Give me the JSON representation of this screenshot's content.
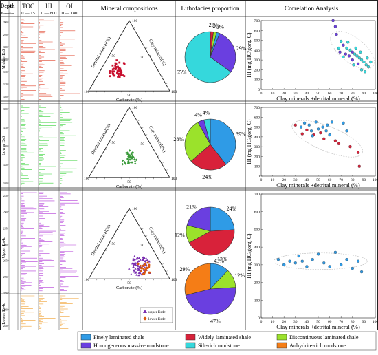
{
  "header": {
    "depth": "Depth",
    "formation": "Formation",
    "toc": "TOC",
    "toc_range": "0 — 15",
    "hi": "HI",
    "hi_range": "0 — 800",
    "oi": "OI",
    "oi_range": "0 — 180",
    "mineral": "Mineral compositions",
    "litho": "Lithofacies proportion",
    "corr": "Correlation Analysis"
  },
  "rows": [
    {
      "formation": "Middle Es3",
      "depths": [
        "2900",
        "2950",
        "3000",
        "3050",
        "3100",
        "3150",
        "3200"
      ],
      "pie_labels": [
        "2%",
        "2%",
        "2%",
        "29%",
        "65%"
      ],
      "pie_slices": [
        {
          "facies": "widely",
          "pct": 2
        },
        {
          "facies": "discontinuous",
          "pct": 2
        },
        {
          "facies": "finely",
          "pct": 2
        },
        {
          "facies": "homogeneous",
          "pct": 29
        },
        {
          "facies": "silt",
          "pct": 65
        }
      ]
    },
    {
      "formation": "Lower Es3",
      "depths": [
        "3200",
        "3250",
        "3300",
        "3350",
        "3400"
      ],
      "pie_labels": [
        "4%",
        "4%",
        "39%",
        "24%",
        "28%"
      ],
      "pie_slices": [
        {
          "facies": "finely",
          "pct": 39
        },
        {
          "facies": "widely",
          "pct": 24
        },
        {
          "facies": "discontinuous",
          "pct": 28
        },
        {
          "facies": "homogeneous",
          "pct": 4
        },
        {
          "facies": "silt",
          "pct": 4
        }
      ]
    },
    {
      "formation": "Upper Es4c",
      "formation2": "Lower Es4c",
      "depths": [
        "2450",
        "2500",
        "2550",
        "2600",
        "2650",
        "2700",
        "2750",
        "2800",
        "2850"
      ],
      "pie_labels": [
        "24%",
        "43%",
        "12%",
        "21%"
      ],
      "pie2_labels": [
        "12%",
        "12%",
        "47%",
        "29%"
      ],
      "pie_slices": [
        {
          "facies": "finely",
          "pct": 24
        },
        {
          "facies": "widely",
          "pct": 43
        },
        {
          "facies": "discontinuous",
          "pct": 12
        },
        {
          "facies": "homogeneous",
          "pct": 21
        }
      ],
      "pie2_slices": [
        {
          "facies": "finely",
          "pct": 12
        },
        {
          "facies": "discontinuous",
          "pct": 12
        },
        {
          "facies": "homogeneous",
          "pct": 47
        },
        {
          "facies": "anhydrite",
          "pct": 29
        }
      ],
      "ternary_legend": [
        "upper Es4c",
        "lower Es4c"
      ]
    }
  ],
  "ternary": {
    "top": "100",
    "left_label": "Detrital mineral(%)",
    "right_label": "Clay mineral(%)",
    "bottom_label": "Carbonate (%)",
    "tick50": "50",
    "tick100": "100"
  },
  "correlation": {
    "ylabel": "HI (mg HC/gorg. C)",
    "xlabel": "Clay minerals +detrital mineral (%)",
    "yticks": [
      "0",
      "100",
      "200",
      "300",
      "400",
      "500",
      "600",
      "700"
    ],
    "xticks": [
      "0",
      "10",
      "20",
      "30",
      "40",
      "50",
      "60",
      "70",
      "80",
      "90",
      "100"
    ]
  },
  "legend": {
    "items": [
      {
        "key": "finely",
        "label": "Finely laminated shale",
        "color": "#2f9be6"
      },
      {
        "key": "widely",
        "label": "Widely laminated shale",
        "color": "#d8223a"
      },
      {
        "key": "discontinuous",
        "label": "Discontinuous laminated shale",
        "color": "#9be22b"
      },
      {
        "key": "homogeneous",
        "label": "Homogeneous massive mudstone",
        "color": "#6a3fe0"
      },
      {
        "key": "silt",
        "label": "Silt-rich mudstone",
        "color": "#35d8dc"
      },
      {
        "key": "anhydrite",
        "label": "Anhydrite-rich mudstone",
        "color": "#f57d16"
      }
    ]
  },
  "colors": {
    "toc1": "#e0442c",
    "toc2": "#38d13a",
    "toc3": "#b33fd8",
    "toc4": "#f0a030",
    "ternary_red": "#c8102e",
    "ternary_green": "#3a9a3a",
    "ternary_purple": "#7a2eb0",
    "ternary_orange": "#d85a10"
  },
  "scatter": {
    "row1": [
      {
        "x": 63,
        "y": 700,
        "c": "homogeneous"
      },
      {
        "x": 65,
        "y": 640,
        "c": "homogeneous"
      },
      {
        "x": 66,
        "y": 560,
        "c": "homogeneous"
      },
      {
        "x": 70,
        "y": 490,
        "c": "silt"
      },
      {
        "x": 72,
        "y": 450,
        "c": "homogeneous"
      },
      {
        "x": 75,
        "y": 420,
        "c": "silt"
      },
      {
        "x": 78,
        "y": 400,
        "c": "silt"
      },
      {
        "x": 80,
        "y": 380,
        "c": "homogeneous"
      },
      {
        "x": 82,
        "y": 360,
        "c": "silt"
      },
      {
        "x": 84,
        "y": 340,
        "c": "silt"
      },
      {
        "x": 86,
        "y": 320,
        "c": "silt"
      },
      {
        "x": 88,
        "y": 300,
        "c": "silt"
      },
      {
        "x": 90,
        "y": 280,
        "c": "silt"
      },
      {
        "x": 92,
        "y": 250,
        "c": "silt"
      },
      {
        "x": 94,
        "y": 230,
        "c": "silt"
      },
      {
        "x": 74,
        "y": 360,
        "c": "homogeneous"
      },
      {
        "x": 77,
        "y": 340,
        "c": "homogeneous"
      },
      {
        "x": 85,
        "y": 260,
        "c": "homogeneous"
      },
      {
        "x": 88,
        "y": 200,
        "c": "silt"
      },
      {
        "x": 91,
        "y": 180,
        "c": "silt"
      },
      {
        "x": 68,
        "y": 420,
        "c": "silt"
      },
      {
        "x": 72,
        "y": 330,
        "c": "silt"
      },
      {
        "x": 80,
        "y": 300,
        "c": "homogeneous"
      },
      {
        "x": 83,
        "y": 420,
        "c": "silt"
      },
      {
        "x": 87,
        "y": 380,
        "c": "silt"
      },
      {
        "x": 93,
        "y": 320,
        "c": "silt"
      },
      {
        "x": 76,
        "y": 480,
        "c": "silt"
      },
      {
        "x": 96,
        "y": 280,
        "c": "silt"
      },
      {
        "x": 69,
        "y": 380,
        "c": "homogeneous"
      },
      {
        "x": 81,
        "y": 250,
        "c": "silt"
      }
    ],
    "row2": [
      {
        "x": 30,
        "y": 520,
        "c": "widely"
      },
      {
        "x": 35,
        "y": 500,
        "c": "finely"
      },
      {
        "x": 38,
        "y": 540,
        "c": "finely"
      },
      {
        "x": 40,
        "y": 470,
        "c": "widely"
      },
      {
        "x": 42,
        "y": 520,
        "c": "finely"
      },
      {
        "x": 44,
        "y": 460,
        "c": "finely"
      },
      {
        "x": 46,
        "y": 420,
        "c": "widely"
      },
      {
        "x": 48,
        "y": 550,
        "c": "finely"
      },
      {
        "x": 50,
        "y": 480,
        "c": "finely"
      },
      {
        "x": 52,
        "y": 440,
        "c": "widely"
      },
      {
        "x": 54,
        "y": 500,
        "c": "finely"
      },
      {
        "x": 55,
        "y": 380,
        "c": "widely"
      },
      {
        "x": 57,
        "y": 460,
        "c": "finely"
      },
      {
        "x": 60,
        "y": 420,
        "c": "finely"
      },
      {
        "x": 62,
        "y": 550,
        "c": "finely"
      },
      {
        "x": 65,
        "y": 360,
        "c": "widely"
      },
      {
        "x": 68,
        "y": 330,
        "c": "widely"
      },
      {
        "x": 72,
        "y": 540,
        "c": "finely"
      },
      {
        "x": 75,
        "y": 460,
        "c": "finely"
      },
      {
        "x": 78,
        "y": 300,
        "c": "widely"
      },
      {
        "x": 85,
        "y": 240,
        "c": "widely"
      },
      {
        "x": 86,
        "y": 100,
        "c": "widely"
      },
      {
        "x": 45,
        "y": 410,
        "c": "finely"
      },
      {
        "x": 58,
        "y": 520,
        "c": "finely"
      },
      {
        "x": 36,
        "y": 430,
        "c": "widely"
      }
    ],
    "row3": [
      {
        "x": 15,
        "y": 330,
        "c": "finely"
      },
      {
        "x": 20,
        "y": 300,
        "c": "finely"
      },
      {
        "x": 25,
        "y": 320,
        "c": "finely"
      },
      {
        "x": 30,
        "y": 310,
        "c": "finely"
      },
      {
        "x": 33,
        "y": 350,
        "c": "finely"
      },
      {
        "x": 36,
        "y": 320,
        "c": "finely"
      },
      {
        "x": 40,
        "y": 290,
        "c": "finely"
      },
      {
        "x": 45,
        "y": 330,
        "c": "finely"
      },
      {
        "x": 50,
        "y": 360,
        "c": "finely"
      },
      {
        "x": 55,
        "y": 310,
        "c": "finely"
      },
      {
        "x": 60,
        "y": 290,
        "c": "finely"
      },
      {
        "x": 65,
        "y": 370,
        "c": "finely"
      },
      {
        "x": 70,
        "y": 300,
        "c": "finely"
      },
      {
        "x": 75,
        "y": 330,
        "c": "finely"
      },
      {
        "x": 80,
        "y": 280,
        "c": "finely"
      },
      {
        "x": 85,
        "y": 320,
        "c": "finely"
      },
      {
        "x": 88,
        "y": 260,
        "c": "finely"
      }
    ]
  }
}
